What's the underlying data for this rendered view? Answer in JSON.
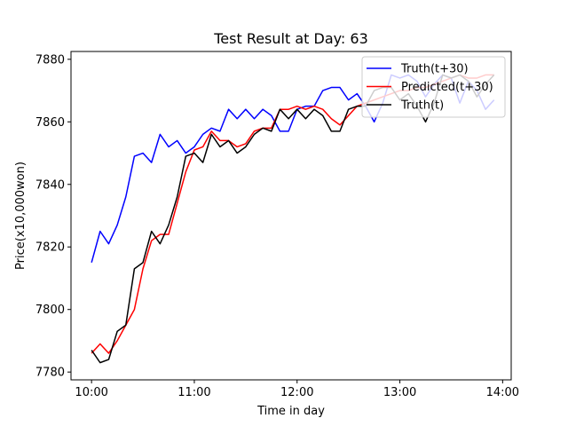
{
  "chart_data": {
    "type": "line",
    "title": "Test Result at Day: 63",
    "xlabel": "Time in day",
    "ylabel": "Price(x10,000won)",
    "x_ticks": [
      {
        "t": 0,
        "label": "10:00"
      },
      {
        "t": 60,
        "label": "11:00"
      },
      {
        "t": 120,
        "label": "12:00"
      },
      {
        "t": 180,
        "label": "13:00"
      },
      {
        "t": 240,
        "label": "14:00"
      }
    ],
    "y_ticks": [
      7780,
      7800,
      7820,
      7840,
      7860,
      7880
    ],
    "xlim_minutes_from_10_00": [
      -12,
      245
    ],
    "ylim": [
      7777.5,
      7882.5
    ],
    "grid": false,
    "legend_position": "top-right",
    "legend": [
      "Truth(t+30)",
      "Predicted(t+30)",
      "Truth(t)"
    ],
    "x_minutes_from_10_00": [
      0,
      5,
      10,
      15,
      20,
      25,
      30,
      35,
      40,
      45,
      50,
      55,
      60,
      65,
      70,
      75,
      80,
      85,
      90,
      95,
      100,
      105,
      110,
      115,
      120,
      125,
      130,
      135,
      140,
      145,
      150,
      155,
      160,
      165,
      170,
      175,
      180,
      185,
      190,
      195,
      200,
      205,
      210,
      215,
      220,
      225,
      230,
      235
    ],
    "series": [
      {
        "name": "Truth(t+30)",
        "color": "#0000ff",
        "values": [
          7815,
          7825,
          7821,
          7827,
          7836,
          7849,
          7850,
          7847,
          7856,
          7852,
          7854,
          7850,
          7852,
          7856,
          7858,
          7857,
          7864,
          7861,
          7864,
          7861,
          7864,
          7862,
          7857,
          7857,
          7864,
          7865,
          7865,
          7870,
          7871,
          7871,
          7867,
          7869,
          7865,
          7860,
          7866,
          7875,
          7874,
          7875,
          7873,
          7868,
          7872,
          7875,
          7874,
          7866,
          7873,
          7870,
          7864,
          7867
        ]
      },
      {
        "name": "Predicted(t+30)",
        "color": "#ff0000",
        "values": [
          7786,
          7789,
          7786,
          7790,
          7795,
          7800,
          7813,
          7822,
          7824,
          7824,
          7834,
          7844,
          7851,
          7852,
          7857,
          7854,
          7854,
          7852,
          7853,
          7857,
          7858,
          7858,
          7864,
          7864,
          7865,
          7864,
          7865,
          7864,
          7861,
          7859,
          7862,
          7865,
          7866,
          7867,
          7868,
          7869,
          7870,
          7870,
          7871,
          7871,
          7872,
          7873,
          7874,
          7875,
          7874,
          7874,
          7875,
          7875
        ]
      },
      {
        "name": "Truth(t)",
        "color": "#000000",
        "values": [
          7787,
          7783,
          7784,
          7793,
          7795,
          7813,
          7815,
          7825,
          7821,
          7827,
          7836,
          7849,
          7850,
          7847,
          7856,
          7852,
          7854,
          7850,
          7852,
          7856,
          7858,
          7857,
          7864,
          7861,
          7864,
          7861,
          7864,
          7862,
          7857,
          7857,
          7864,
          7865,
          7865,
          7870,
          7871,
          7871,
          7867,
          7869,
          7865,
          7860,
          7866,
          7875,
          7874,
          7875,
          7873,
          7868,
          7872,
          7875
        ]
      }
    ]
  }
}
